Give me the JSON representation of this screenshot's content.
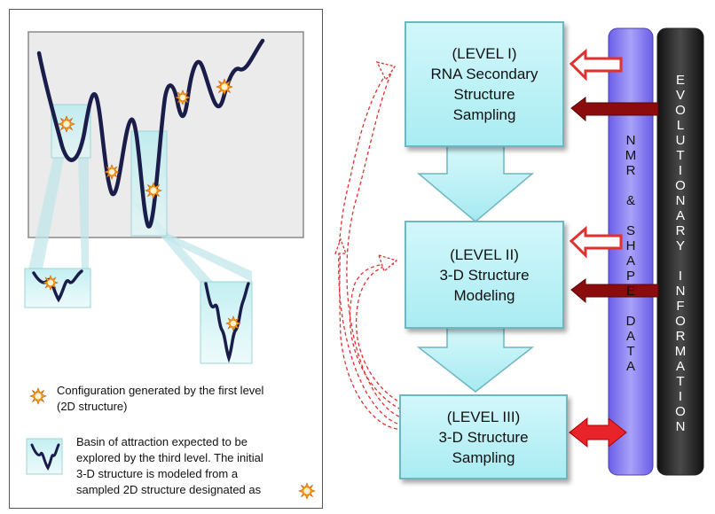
{
  "levels": [
    {
      "title": "(LEVEL I)",
      "lines": [
        "RNA Secondary",
        "Structure",
        "Sampling"
      ]
    },
    {
      "title": "(LEVEL II)",
      "lines": [
        "3-D Structure",
        "Modeling"
      ]
    },
    {
      "title": "(LEVEL III)",
      "lines": [
        "3-D Structure",
        "Sampling"
      ]
    }
  ],
  "side_bars": {
    "nmr": {
      "letters": [
        "N",
        "M",
        "R",
        "",
        "&",
        "",
        "S",
        "H",
        "A",
        "P",
        "E",
        "",
        "D",
        "A",
        "T",
        "A"
      ],
      "color": "#8a80f0"
    },
    "evolution": {
      "letters": [
        "E",
        "V",
        "O",
        "L",
        "U",
        "T",
        "I",
        "O",
        "N",
        "A",
        "R",
        "Y",
        "",
        "I",
        "N",
        "F",
        "O",
        "R",
        "M",
        "A",
        "T",
        "I",
        "O",
        "N"
      ],
      "color": "#333333"
    }
  },
  "legend": {
    "star_text_1": "Configuration generated by the first level",
    "star_text_2": "(2D structure)",
    "basin_text_1": "Basin of attraction expected to be",
    "basin_text_2": "explored by the third level.  The initial",
    "basin_text_3": "3-D structure is modeled from a",
    "basin_text_4": "sampled 2D structure designated as"
  },
  "colors": {
    "box_fill": "#b3eef4",
    "arrow_red": "#e03030",
    "arrow_dark": "#8b0c0c",
    "curve": "#1a1c4a",
    "star": "#f08a10"
  }
}
